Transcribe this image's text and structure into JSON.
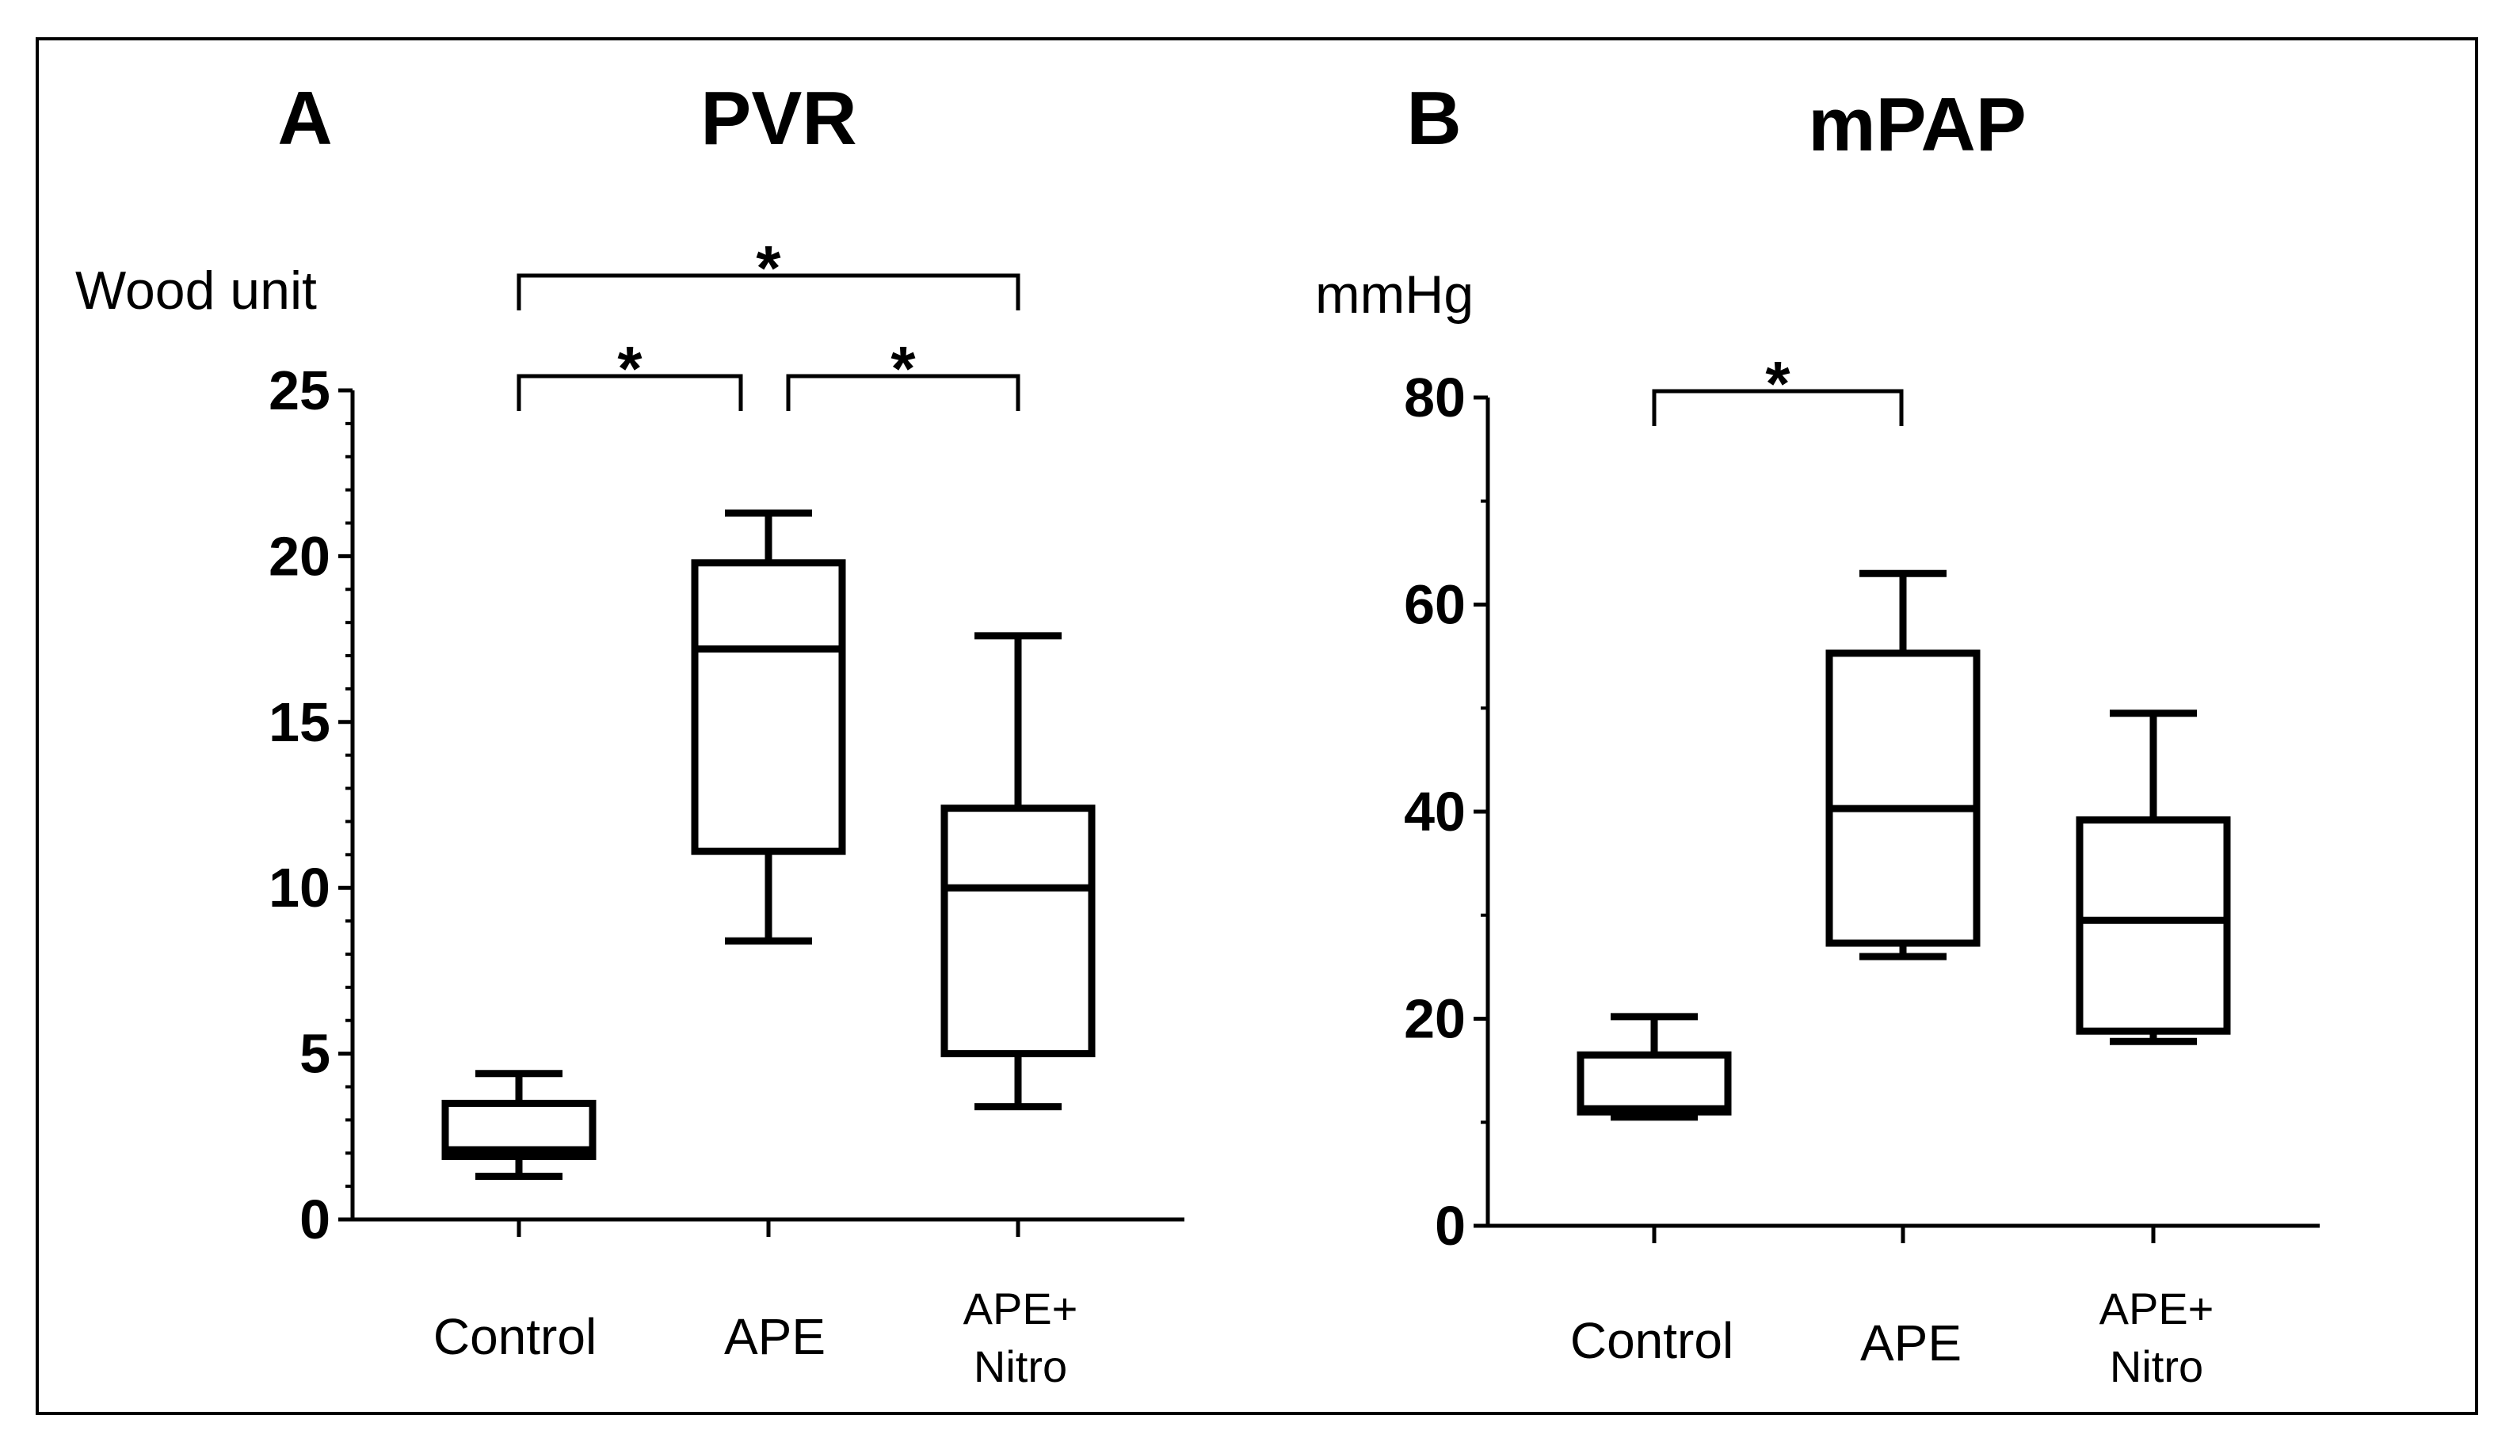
{
  "figure": {
    "border_color": "#000000"
  },
  "chart_data": [
    {
      "type": "box",
      "panel_letter": "A",
      "title": "PVR",
      "ylabel": "Wood unit",
      "ylim": [
        0,
        25
      ],
      "yticks": [
        "0",
        "5",
        "10",
        "15",
        "20",
        "25"
      ],
      "ytick_values": [
        0,
        5,
        10,
        15,
        20,
        25
      ],
      "categories": [
        {
          "line1": "Control",
          "line2": ""
        },
        {
          "line1": "APE",
          "line2": ""
        },
        {
          "line1": "APE+",
          "line2": "Nitro"
        }
      ],
      "boxes": [
        {
          "min": 1.3,
          "q1": 1.9,
          "median": 2.1,
          "q3": 3.5,
          "max": 4.4
        },
        {
          "min": 8.4,
          "q1": 11.1,
          "median": 17.2,
          "q3": 19.8,
          "max": 21.3
        },
        {
          "min": 3.4,
          "q1": 5.0,
          "median": 10.0,
          "q3": 12.4,
          "max": 17.6
        }
      ],
      "significance": [
        {
          "from": 0,
          "to": 1,
          "level": 1,
          "label": "*"
        },
        {
          "from": 1,
          "to": 2,
          "level": 1,
          "label": "*"
        },
        {
          "from": 0,
          "to": 2,
          "level": 2,
          "label": "*"
        }
      ]
    },
    {
      "type": "box",
      "panel_letter": "B",
      "title": "mPAP",
      "ylabel": "mmHg",
      "ylim": [
        0,
        80
      ],
      "yticks": [
        "0",
        "20",
        "40",
        "60",
        "80"
      ],
      "ytick_values": [
        0,
        20,
        40,
        60,
        80
      ],
      "categories": [
        {
          "line1": "Control",
          "line2": ""
        },
        {
          "line1": "APE",
          "line2": ""
        },
        {
          "line1": "APE+",
          "line2": "Nitro"
        }
      ],
      "boxes": [
        {
          "min": 10.5,
          "q1": 11.0,
          "median": 11.3,
          "q3": 16.5,
          "max": 20.2
        },
        {
          "min": 26.0,
          "q1": 27.3,
          "median": 40.3,
          "q3": 55.3,
          "max": 63.0
        },
        {
          "min": 17.8,
          "q1": 18.8,
          "median": 29.5,
          "q3": 39.2,
          "max": 49.5
        }
      ],
      "significance": [
        {
          "from": 0,
          "to": 1,
          "level": 1,
          "label": "*"
        }
      ]
    }
  ]
}
